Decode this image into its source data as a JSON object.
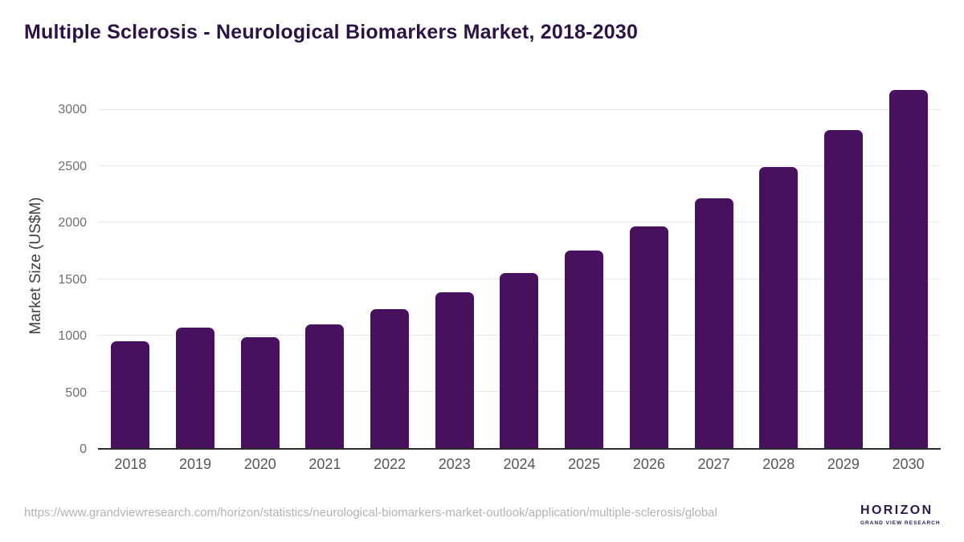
{
  "chart_data": {
    "type": "bar",
    "title": "Multiple Sclerosis - Neurological Biomarkers Market, 2018-2030",
    "ylabel": "Market Size (US$M)",
    "xlabel": "",
    "categories": [
      "2018",
      "2019",
      "2020",
      "2021",
      "2022",
      "2023",
      "2024",
      "2025",
      "2026",
      "2027",
      "2028",
      "2029",
      "2030"
    ],
    "values": [
      950,
      1070,
      985,
      1100,
      1230,
      1385,
      1555,
      1750,
      1970,
      2215,
      2495,
      2820,
      3180
    ],
    "yticks": [
      0,
      500,
      1000,
      1500,
      2000,
      2500,
      3000
    ],
    "ylim": [
      0,
      3250
    ],
    "grid": true,
    "legend": false,
    "bar_color": "#48115e",
    "title_color": "#2d1245",
    "gridline_color": "#e7e7e7",
    "axis_line_color": "#2b2b2b",
    "ytick_color": "#6f6f6f",
    "xtick_color": "#565656"
  },
  "footer": {
    "source_url": "https://www.grandviewresearch.com/horizon/statistics/neurological-biomarkers-market-outlook/application/multiple-sclerosis/global",
    "logo": {
      "brand": "HORIZON",
      "subtitle": "GRAND VIEW RESEARCH",
      "brand_color": "#2b1a4d",
      "circle_top_color": "#2b1a4d",
      "circle_bottom_color": "#57c4f0"
    }
  }
}
